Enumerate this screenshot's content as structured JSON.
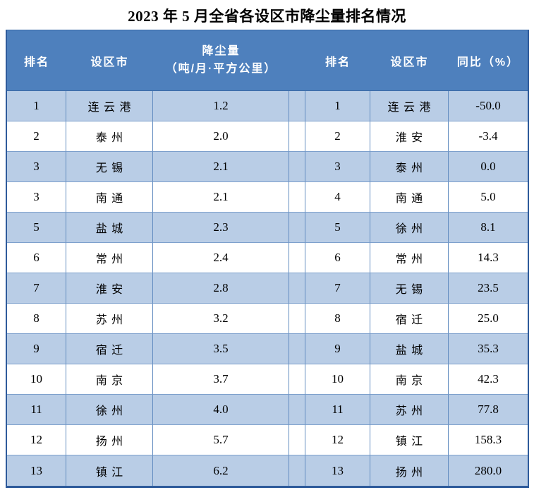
{
  "title": "2023 年 5 月全省各设区市降尘量排名情况",
  "header": {
    "rank_left": "排名",
    "city_left": "设区市",
    "dust_line1": "降尘量",
    "dust_line2": "（吨/月·平方公里）",
    "rank_right": "排名",
    "city_right": "设区市",
    "yoy": "同比（%）"
  },
  "colors": {
    "header_bg": "#4E80BD",
    "header_text": "#FFFFFF",
    "stripe_bg": "#B9CDE6",
    "row_bg": "#FFFFFF",
    "inner_border": "#628CC0",
    "outer_border": "#2E5B9B",
    "body_text": "#000000"
  },
  "rows": [
    {
      "l_rank": "1",
      "l_city": "连云港",
      "l_value": "1.2",
      "r_rank": "1",
      "r_city": "连云港",
      "r_value": "-50.0"
    },
    {
      "l_rank": "2",
      "l_city": "泰州",
      "l_value": "2.0",
      "r_rank": "2",
      "r_city": "淮安",
      "r_value": "-3.4"
    },
    {
      "l_rank": "3",
      "l_city": "无锡",
      "l_value": "2.1",
      "r_rank": "3",
      "r_city": "泰州",
      "r_value": "0.0"
    },
    {
      "l_rank": "3",
      "l_city": "南通",
      "l_value": "2.1",
      "r_rank": "4",
      "r_city": "南通",
      "r_value": "5.0"
    },
    {
      "l_rank": "5",
      "l_city": "盐城",
      "l_value": "2.3",
      "r_rank": "5",
      "r_city": "徐州",
      "r_value": "8.1"
    },
    {
      "l_rank": "6",
      "l_city": "常州",
      "l_value": "2.4",
      "r_rank": "6",
      "r_city": "常州",
      "r_value": "14.3"
    },
    {
      "l_rank": "7",
      "l_city": "淮安",
      "l_value": "2.8",
      "r_rank": "7",
      "r_city": "无锡",
      "r_value": "23.5"
    },
    {
      "l_rank": "8",
      "l_city": "苏州",
      "l_value": "3.2",
      "r_rank": "8",
      "r_city": "宿迁",
      "r_value": "25.0"
    },
    {
      "l_rank": "9",
      "l_city": "宿迁",
      "l_value": "3.5",
      "r_rank": "9",
      "r_city": "盐城",
      "r_value": "35.3"
    },
    {
      "l_rank": "10",
      "l_city": "南京",
      "l_value": "3.7",
      "r_rank": "10",
      "r_city": "南京",
      "r_value": "42.3"
    },
    {
      "l_rank": "11",
      "l_city": "徐州",
      "l_value": "4.0",
      "r_rank": "11",
      "r_city": "苏州",
      "r_value": "77.8"
    },
    {
      "l_rank": "12",
      "l_city": "扬州",
      "l_value": "5.7",
      "r_rank": "12",
      "r_city": "镇江",
      "r_value": "158.3"
    },
    {
      "l_rank": "13",
      "l_city": "镇江",
      "l_value": "6.2",
      "r_rank": "13",
      "r_city": "扬州",
      "r_value": "280.0"
    }
  ]
}
